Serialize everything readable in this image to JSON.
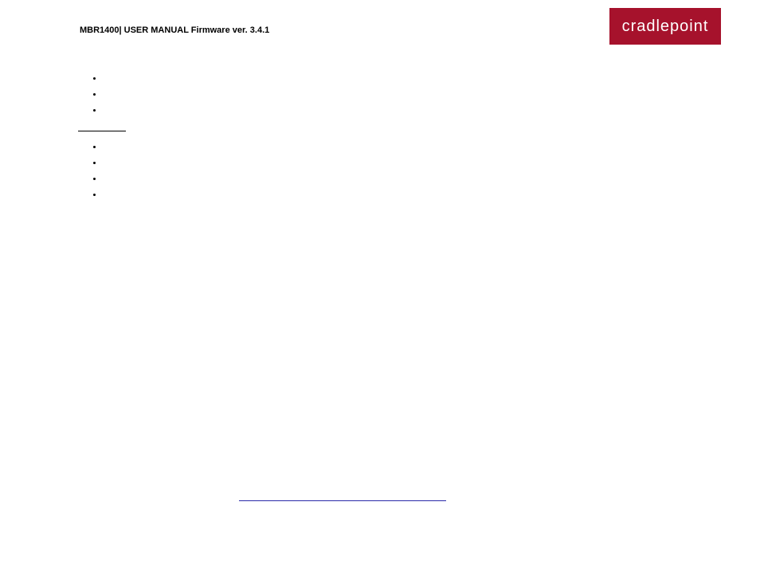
{
  "header": {
    "title": "MBR1400| USER MANUAL Firmware ver. 3.4.1"
  },
  "logo": {
    "text": "cradlepoint",
    "background_color": "#a6122c",
    "text_color": "#ffffff"
  },
  "content": {
    "list1": {
      "items": [
        {
          "text": ""
        },
        {
          "text": ""
        },
        {
          "text": ""
        }
      ]
    },
    "section": {
      "label": ""
    },
    "list2": {
      "items": [
        {
          "text": ""
        },
        {
          "text": ""
        },
        {
          "text": ""
        },
        {
          "text": ""
        }
      ]
    }
  },
  "link": {
    "underline_color": "#2a2aa8"
  },
  "page_background": "#ffffff"
}
